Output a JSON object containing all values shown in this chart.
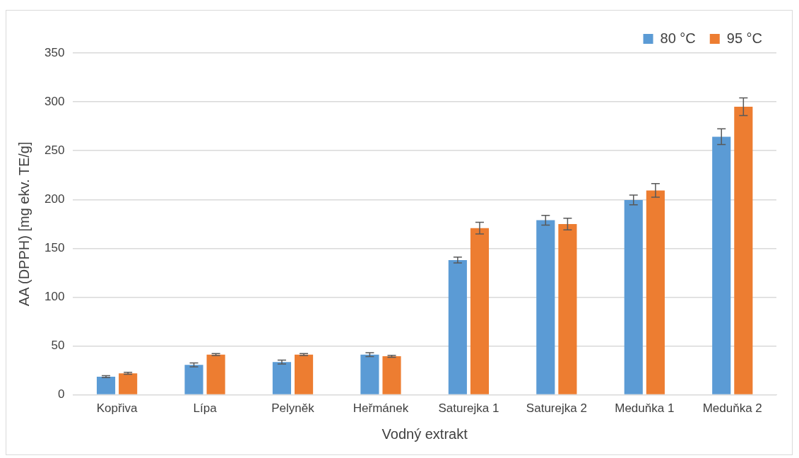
{
  "chart_data": {
    "type": "bar",
    "xlabel": "Vodný extrakt",
    "ylabel": "AA (DPPH) [mg ekv. TE/g]",
    "categories": [
      "Kopřiva",
      "Lípa",
      "Pelyněk",
      "Heřmánek",
      "Saturejka 1",
      "Saturejka 2",
      "Meduňka 1",
      "Meduňka 2"
    ],
    "series": [
      {
        "name": "80 °C",
        "color": "#5b9bd5",
        "values": [
          18.6,
          30.7,
          33.6,
          41.2,
          138,
          178.8,
          199.5,
          264.3
        ],
        "errors": [
          1,
          2,
          2,
          2,
          3,
          5,
          5,
          8
        ]
      },
      {
        "name": "95 °C",
        "color": "#ed7d31",
        "values": [
          22,
          41.2,
          41.2,
          39.5,
          170.7,
          174.8,
          209.3,
          295
        ],
        "errors": [
          1,
          1,
          1,
          1,
          6,
          6,
          7,
          9
        ]
      }
    ],
    "ylim": [
      0,
      350
    ],
    "yticks": [
      0,
      50,
      100,
      150,
      200,
      250,
      300,
      350
    ],
    "grid": "y",
    "legend": "top right"
  }
}
